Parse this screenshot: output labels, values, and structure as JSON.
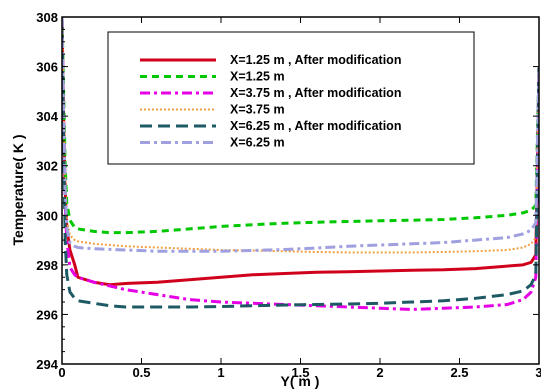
{
  "chart_data": {
    "type": "line",
    "title": "",
    "xlabel": "Y( m )",
    "ylabel": "Temperature( K )",
    "xlim": [
      0,
      3
    ],
    "ylim": [
      294,
      308
    ],
    "xticks": [
      0,
      0.5,
      1,
      1.5,
      2,
      2.5,
      3
    ],
    "xtick_labels": [
      "0",
      "0.5",
      "1",
      "1.5",
      "2",
      "2.5",
      "3"
    ],
    "yticks": [
      294,
      296,
      298,
      300,
      302,
      304,
      306,
      308
    ],
    "ytick_labels": [
      "294",
      "296",
      "298",
      "300",
      "302",
      "304",
      "306",
      "308"
    ],
    "grid": false,
    "legend_position": "top-right",
    "series": [
      {
        "name": "X=1.25 m , After modification",
        "color": "#d0021b",
        "style": "solid",
        "x": [
          0,
          0.01,
          0.02,
          0.03,
          0.05,
          0.08,
          0.1,
          0.2,
          0.3,
          0.4,
          0.6,
          0.8,
          1.0,
          1.2,
          1.4,
          1.6,
          1.8,
          2.0,
          2.2,
          2.4,
          2.6,
          2.8,
          2.9,
          2.95,
          2.98,
          3.0
        ],
        "y": [
          308,
          304,
          301,
          299.5,
          298.6,
          298,
          297.5,
          297.3,
          297.2,
          297.25,
          297.3,
          297.4,
          297.5,
          297.6,
          297.65,
          297.7,
          297.72,
          297.75,
          297.78,
          297.8,
          297.85,
          297.95,
          298.0,
          298.1,
          298.4,
          306
        ]
      },
      {
        "name": "X=1.25 m",
        "color": "#00c800",
        "style": "dash",
        "x": [
          0,
          0.01,
          0.02,
          0.03,
          0.05,
          0.08,
          0.1,
          0.2,
          0.3,
          0.4,
          0.6,
          0.8,
          1.0,
          1.2,
          1.4,
          1.6,
          1.8,
          2.0,
          2.2,
          2.4,
          2.6,
          2.8,
          2.9,
          2.95,
          2.98,
          3.0
        ],
        "y": [
          308,
          305,
          302,
          300.5,
          299.8,
          299.5,
          299.45,
          299.35,
          299.3,
          299.3,
          299.35,
          299.45,
          299.55,
          299.62,
          299.68,
          299.72,
          299.75,
          299.78,
          299.8,
          299.83,
          299.9,
          300.0,
          300.1,
          300.2,
          300.4,
          306
        ]
      },
      {
        "name": "X=3.75 m , After modification",
        "color": "#e600e6",
        "style": "dashdot",
        "x": [
          0,
          0.01,
          0.02,
          0.03,
          0.05,
          0.08,
          0.1,
          0.2,
          0.4,
          0.6,
          0.8,
          1.0,
          1.2,
          1.4,
          1.6,
          1.8,
          2.0,
          2.2,
          2.4,
          2.6,
          2.8,
          2.9,
          2.95,
          2.98,
          3.0
        ],
        "y": [
          308,
          304,
          300.5,
          299,
          297.9,
          297.6,
          297.5,
          297.3,
          297.0,
          296.8,
          296.6,
          296.5,
          296.45,
          296.4,
          296.35,
          296.3,
          296.25,
          296.2,
          296.25,
          296.3,
          296.4,
          296.6,
          296.9,
          297.5,
          306
        ]
      },
      {
        "name": "X=3.75 m",
        "color": "#f0a040",
        "style": "dot",
        "x": [
          0,
          0.01,
          0.02,
          0.03,
          0.05,
          0.08,
          0.1,
          0.2,
          0.4,
          0.6,
          0.8,
          1.0,
          1.2,
          1.4,
          1.6,
          1.8,
          2.0,
          2.2,
          2.4,
          2.6,
          2.8,
          2.9,
          2.95,
          2.98,
          3.0
        ],
        "y": [
          308,
          304.5,
          301.5,
          299.8,
          299.2,
          299.0,
          298.95,
          298.85,
          298.75,
          298.7,
          298.65,
          298.6,
          298.58,
          298.55,
          298.52,
          298.5,
          298.5,
          298.5,
          298.52,
          298.55,
          298.6,
          298.7,
          298.85,
          299.1,
          306
        ]
      },
      {
        "name": "X=6.25 m , After modification",
        "color": "#1e5a64",
        "style": "longdash",
        "x": [
          0,
          0.01,
          0.02,
          0.03,
          0.05,
          0.08,
          0.1,
          0.2,
          0.3,
          0.4,
          0.6,
          0.8,
          1.0,
          1.2,
          1.4,
          1.6,
          1.8,
          2.0,
          2.2,
          2.4,
          2.6,
          2.8,
          2.9,
          2.95,
          2.98,
          3.0
        ],
        "y": [
          308,
          303,
          299,
          297.6,
          296.9,
          296.65,
          296.55,
          296.45,
          296.35,
          296.3,
          296.3,
          296.3,
          296.32,
          296.35,
          296.38,
          296.4,
          296.42,
          296.45,
          296.5,
          296.55,
          296.65,
          296.8,
          296.95,
          297.2,
          297.6,
          306
        ]
      },
      {
        "name": "X=6.25 m",
        "color": "#a0a0e0",
        "style": "dashdot",
        "x": [
          0,
          0.01,
          0.02,
          0.03,
          0.05,
          0.08,
          0.1,
          0.2,
          0.4,
          0.6,
          0.8,
          1.0,
          1.2,
          1.4,
          1.6,
          1.8,
          2.0,
          2.2,
          2.4,
          2.6,
          2.8,
          2.9,
          2.95,
          2.98,
          3.0
        ],
        "y": [
          308,
          304,
          301,
          299.5,
          298.9,
          298.75,
          298.7,
          298.65,
          298.6,
          298.55,
          298.55,
          298.55,
          298.58,
          298.62,
          298.68,
          298.75,
          298.8,
          298.85,
          298.9,
          299.0,
          299.1,
          299.25,
          299.4,
          299.7,
          306
        ]
      }
    ]
  }
}
